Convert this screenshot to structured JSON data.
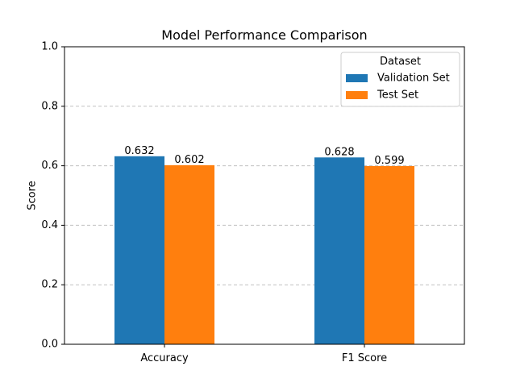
{
  "chart_data": {
    "type": "bar",
    "title": "Model Performance Comparison",
    "xlabel": "",
    "ylabel": "Score",
    "ylim": [
      0,
      1.0
    ],
    "yticks": [
      0.0,
      0.2,
      0.4,
      0.6,
      0.8,
      1.0
    ],
    "ytick_labels": [
      "0.0",
      "0.2",
      "0.4",
      "0.6",
      "0.8",
      "1.0"
    ],
    "grid": "y-dashed",
    "categories": [
      "Accuracy",
      "F1 Score"
    ],
    "series": [
      {
        "name": "Validation Set",
        "color": "#1f77b4",
        "values": [
          0.632,
          0.628
        ],
        "labels": [
          "0.632",
          "0.628"
        ]
      },
      {
        "name": "Test Set",
        "color": "#ff7f0e",
        "values": [
          0.602,
          0.599
        ],
        "labels": [
          "0.602",
          "0.599"
        ]
      }
    ],
    "legend": {
      "title": "Dataset",
      "placement": "top-right"
    }
  }
}
